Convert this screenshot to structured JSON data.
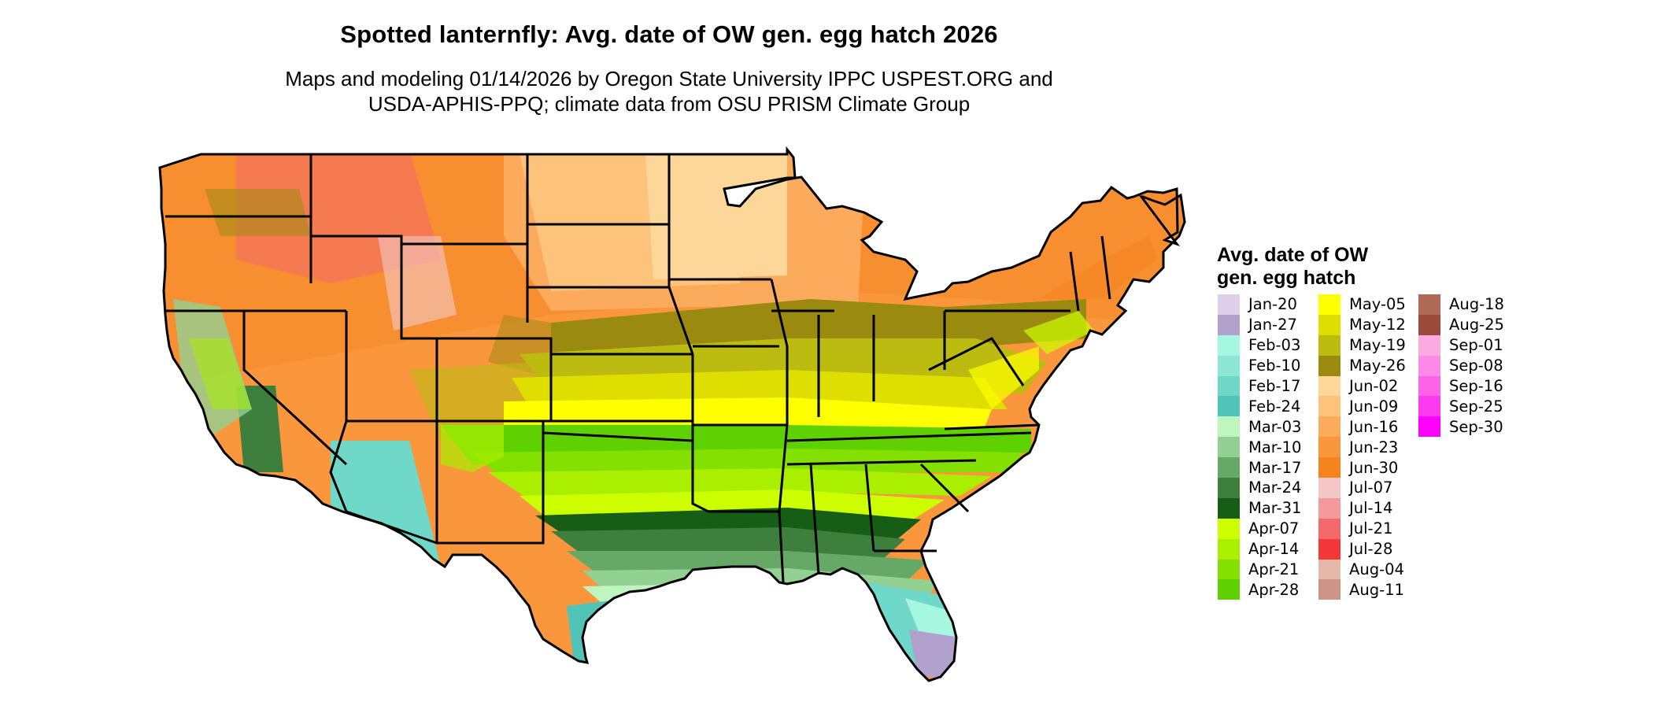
{
  "title": "Spotted lanternfly: Avg. date of OW gen. egg hatch 2026",
  "subtitle_line1": "Maps and modeling 01/14/2026 by Oregon State University IPPC USPEST.ORG and",
  "subtitle_line2": "USDA-APHIS-PPQ; climate data from OSU PRISM Climate Group",
  "legend": {
    "title_line1": "Avg. date of OW",
    "title_line2": "gen. egg hatch",
    "columns": [
      [
        {
          "label": "Jan-20",
          "color": "#dcd0ec"
        },
        {
          "label": "Jan-27",
          "color": "#b0a2cc"
        },
        {
          "label": "Feb-03",
          "color": "#a6f7e0"
        },
        {
          "label": "Feb-10",
          "color": "#8ce8d4"
        },
        {
          "label": "Feb-17",
          "color": "#70d8c8"
        },
        {
          "label": "Feb-24",
          "color": "#50c4b6"
        },
        {
          "label": "Mar-03",
          "color": "#bff5bf"
        },
        {
          "label": "Mar-10",
          "color": "#92d192"
        },
        {
          "label": "Mar-17",
          "color": "#66a866"
        },
        {
          "label": "Mar-24",
          "color": "#3e7f3e"
        },
        {
          "label": "Mar-31",
          "color": "#165e16"
        },
        {
          "label": "Apr-07",
          "color": "#ccff00"
        },
        {
          "label": "Apr-14",
          "color": "#aaef00"
        },
        {
          "label": "Apr-21",
          "color": "#84e000"
        },
        {
          "label": "Apr-28",
          "color": "#5ed200"
        }
      ],
      [
        {
          "label": "May-05",
          "color": "#ffff00"
        },
        {
          "label": "May-12",
          "color": "#dede00"
        },
        {
          "label": "May-19",
          "color": "#bcbc10"
        },
        {
          "label": "May-26",
          "color": "#9a8a10"
        },
        {
          "label": "Jun-02",
          "color": "#fdd79a"
        },
        {
          "label": "Jun-09",
          "color": "#fdc37a"
        },
        {
          "label": "Jun-16",
          "color": "#fcab5c"
        },
        {
          "label": "Jun-23",
          "color": "#fa963c"
        },
        {
          "label": "Jun-30",
          "color": "#f5841e"
        },
        {
          "label": "Jul-07",
          "color": "#f4c8c8"
        },
        {
          "label": "Jul-14",
          "color": "#f49a9a"
        },
        {
          "label": "Jul-21",
          "color": "#f46a6a"
        },
        {
          "label": "Jul-28",
          "color": "#f43838"
        },
        {
          "label": "Aug-04",
          "color": "#e6b8aa"
        },
        {
          "label": "Aug-11",
          "color": "#cc9484"
        }
      ],
      [
        {
          "label": "Aug-18",
          "color": "#b06a58"
        },
        {
          "label": "Aug-25",
          "color": "#9a4a3a"
        },
        {
          "label": "Sep-01",
          "color": "#fcaadf"
        },
        {
          "label": "Sep-08",
          "color": "#fc8ae6"
        },
        {
          "label": "Sep-16",
          "color": "#fc64e8"
        },
        {
          "label": "Sep-25",
          "color": "#fc3cee"
        },
        {
          "label": "Sep-30",
          "color": "#ff00ff"
        }
      ]
    ]
  }
}
